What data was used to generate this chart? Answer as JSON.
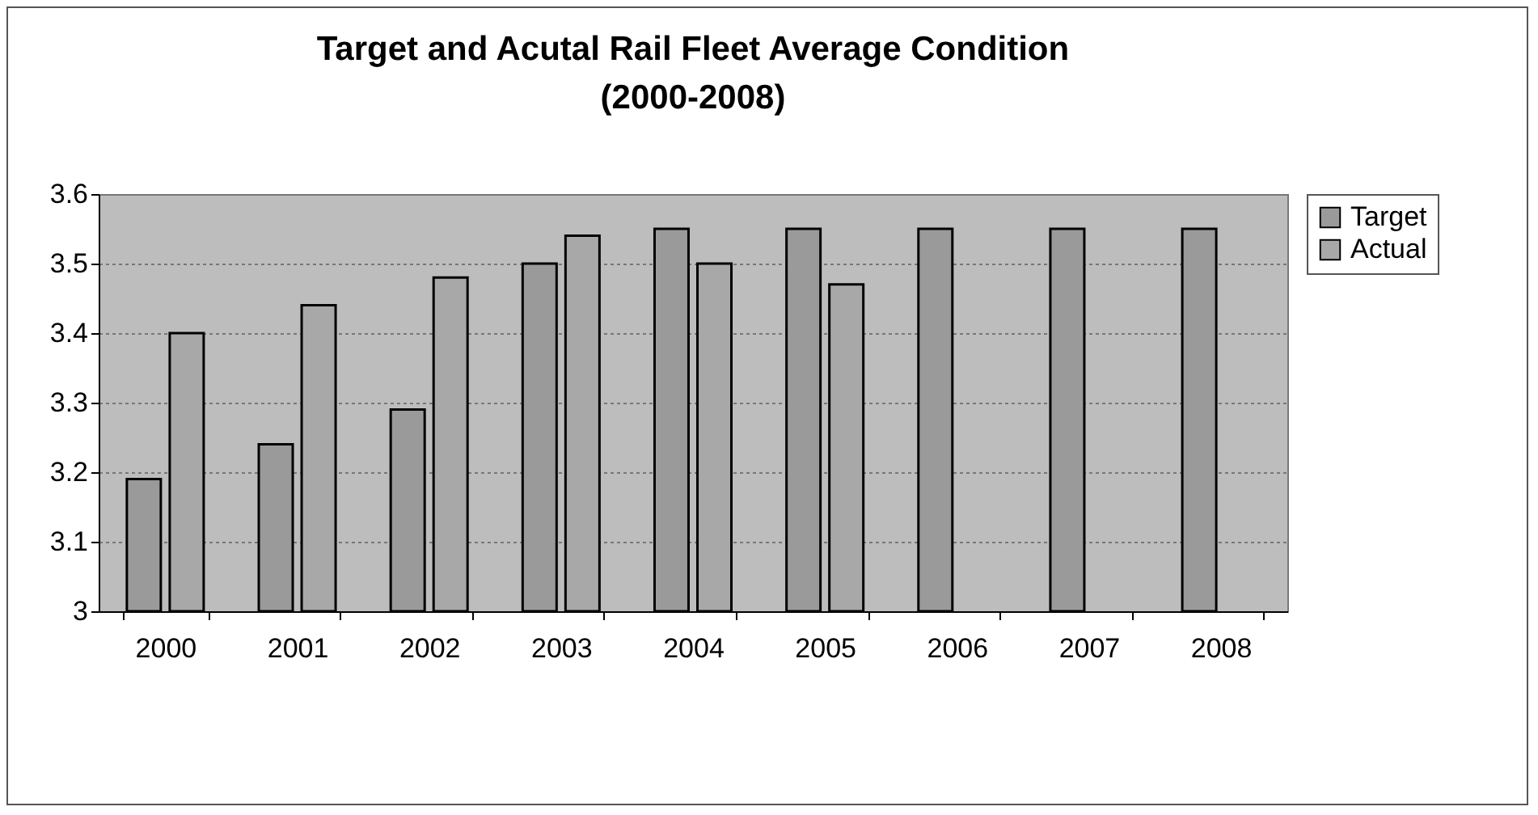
{
  "chart_data": {
    "type": "bar",
    "title": "Target and Acutal Rail Fleet Average Condition\n(2000-2008)",
    "categories": [
      "2000",
      "2001",
      "2002",
      "2003",
      "2004",
      "2005",
      "2006",
      "2007",
      "2008"
    ],
    "series": [
      {
        "name": "Target",
        "color": "#9a9a9a",
        "values": [
          3.19,
          3.24,
          3.29,
          3.5,
          3.55,
          3.55,
          3.55,
          3.55,
          3.55
        ]
      },
      {
        "name": "Actual",
        "color": "#a8a8a8",
        "values": [
          3.4,
          3.44,
          3.48,
          3.54,
          3.5,
          3.47,
          null,
          null,
          null
        ]
      }
    ],
    "ylim": [
      3,
      3.6
    ],
    "yticks": [
      3,
      3.1,
      3.2,
      3.3,
      3.4,
      3.5,
      3.6
    ],
    "grid": "y",
    "legend": "right"
  }
}
